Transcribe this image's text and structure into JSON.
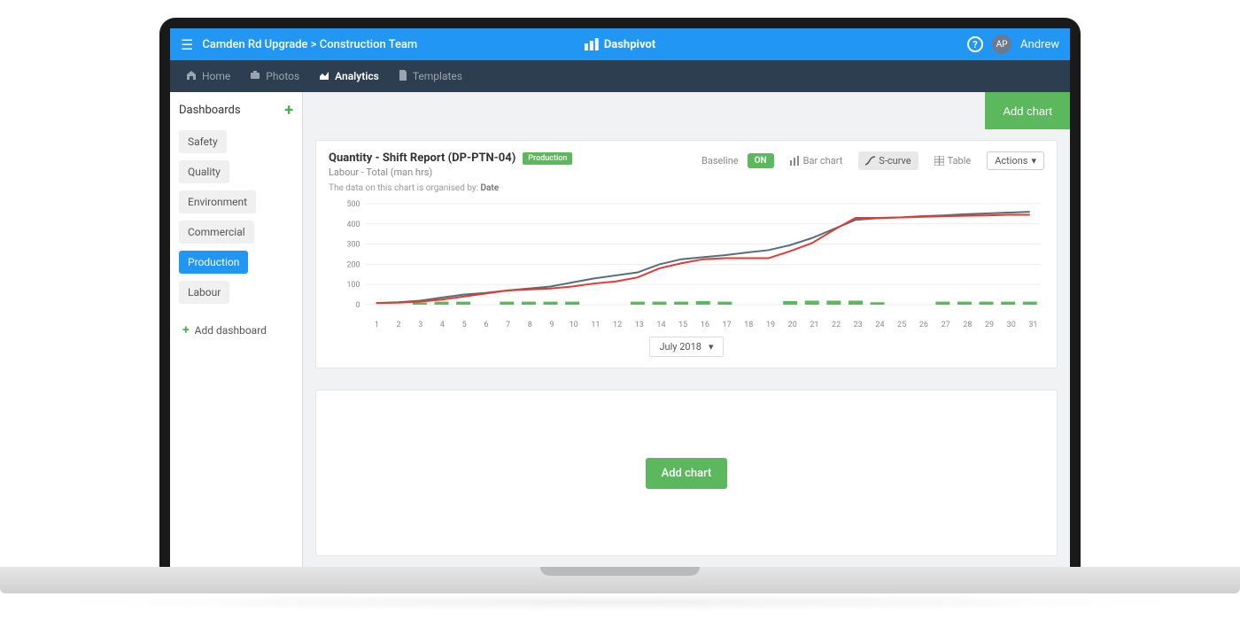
{
  "topbar": {
    "breadcrumb": "Camden Rd Upgrade > Construction Team",
    "brand": "Dashpivot",
    "user_initials": "AP",
    "user_name": "Andrew"
  },
  "nav": {
    "items": [
      "Home",
      "Photos",
      "Analytics",
      "Templates"
    ],
    "active_index": 2
  },
  "sidebar": {
    "title": "Dashboards",
    "items": [
      "Safety",
      "Quality",
      "Environment",
      "Commercial",
      "Production",
      "Labour"
    ],
    "active_index": 4,
    "add_label": "Add dashboard"
  },
  "main_header": {
    "add_chart": "Add chart"
  },
  "chart_card": {
    "title": "Quantity - Shift Report (DP-PTN-04)",
    "tag": "Production",
    "subtitle": "Labour - Total (man hrs)",
    "note_prefix": "The data on this chart is organised by: ",
    "note_emph": "Date",
    "controls": {
      "baseline_label": "Baseline",
      "toggle": "ON",
      "barchart": "Bar chart",
      "scurve": "S-curve",
      "table": "Table",
      "actions": "Actions"
    },
    "date_range": "July 2018",
    "chart": {
      "type": "s-curve",
      "ylim": [
        0,
        500
      ],
      "ytick_step": 100,
      "yticks": [
        0,
        100,
        200,
        300,
        400,
        500
      ],
      "x_labels": [
        "1",
        "2",
        "3",
        "4",
        "5",
        "6",
        "7",
        "8",
        "9",
        "10",
        "11",
        "12",
        "13",
        "14",
        "15",
        "16",
        "17",
        "18",
        "19",
        "20",
        "21",
        "22",
        "23",
        "24",
        "25",
        "26",
        "27",
        "28",
        "29",
        "30",
        "31"
      ],
      "background_color": "#ffffff",
      "grid_color": "#eeeeee",
      "line_actual_color": "#e53935",
      "line_baseline_color": "#546e7a",
      "bar_color": "#5cb85c",
      "line_width": 2,
      "bar_values": [
        0,
        0,
        10,
        15,
        15,
        0,
        15,
        15,
        15,
        15,
        0,
        0,
        15,
        15,
        15,
        18,
        15,
        0,
        0,
        18,
        20,
        20,
        20,
        12,
        0,
        0,
        15,
        15,
        15,
        15,
        15
      ],
      "actual_cum": [
        8,
        10,
        15,
        25,
        40,
        55,
        70,
        75,
        80,
        90,
        105,
        115,
        135,
        180,
        205,
        225,
        230,
        230,
        230,
        265,
        305,
        370,
        430,
        430,
        432,
        435,
        438,
        440,
        442,
        445,
        445
      ],
      "baseline_cum": [
        8,
        12,
        20,
        35,
        50,
        58,
        70,
        80,
        90,
        110,
        130,
        145,
        160,
        200,
        225,
        235,
        245,
        258,
        270,
        295,
        330,
        375,
        420,
        428,
        432,
        438,
        442,
        448,
        452,
        456,
        460
      ]
    }
  },
  "empty_card": {
    "add_chart": "Add chart"
  },
  "colors": {
    "primary": "#2196f3",
    "navbg": "#2c3e50",
    "green": "#5cb85c"
  }
}
